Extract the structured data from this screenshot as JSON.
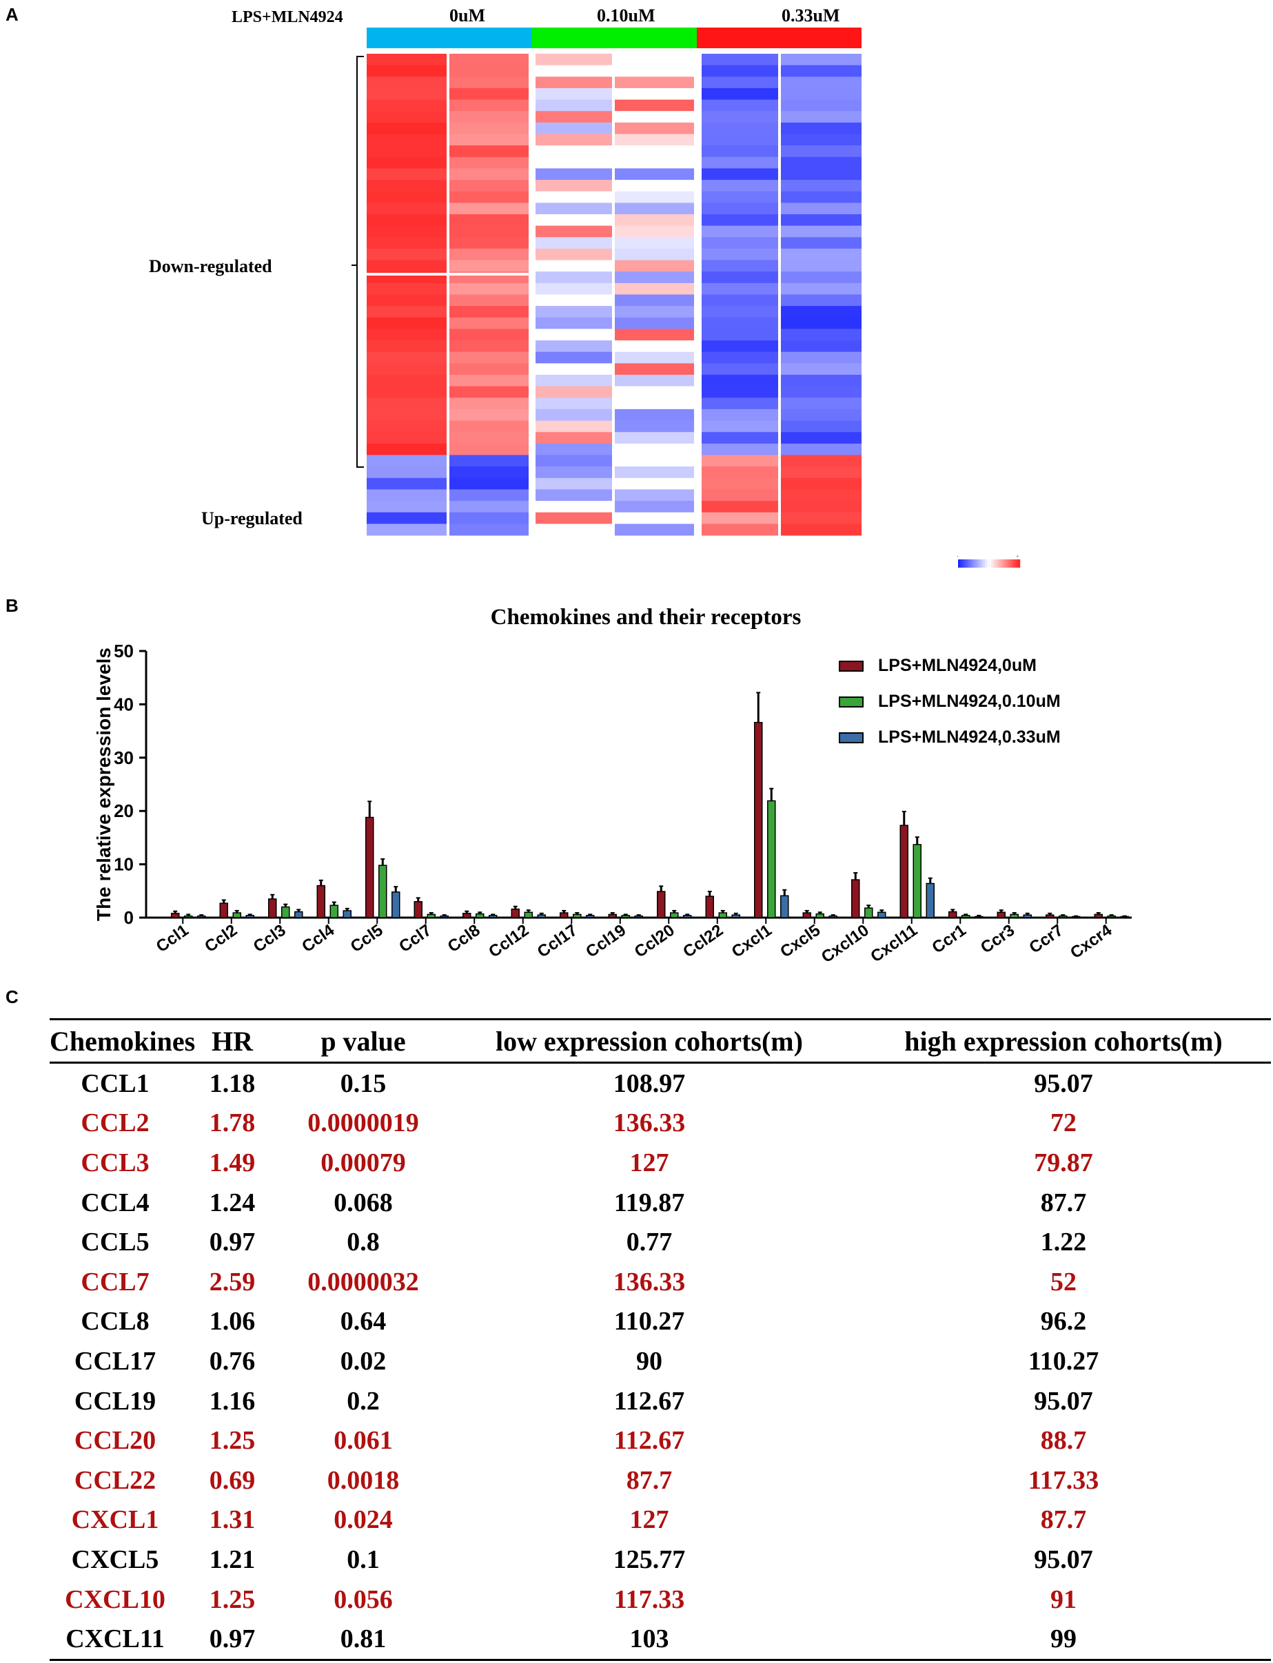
{
  "panel_labels": {
    "a": "A",
    "b": "B",
    "c": "C"
  },
  "colors": {
    "red": "#b01010",
    "black": "#000000",
    "group_0": "#00b4f0",
    "group_010": "#00ee00",
    "group_033": "#ff1515",
    "bar_0": "#8b1520",
    "bar_010": "#3aa63a",
    "bar_033": "#3a6ea6"
  },
  "heatmap": {
    "treatment_label": "LPS+MLN4924",
    "groups": [
      {
        "label": "0uM",
        "color": "#00b4f0"
      },
      {
        "label": "0.10uM",
        "color": "#00ee00"
      },
      {
        "label": "0.33uM",
        "color": "#ff1515"
      }
    ],
    "row_labels": {
      "down": "Down-regulated",
      "up": "Up-regulated"
    },
    "legend_min": "-",
    "legend_max": "+"
  },
  "chart_data": {
    "type": "bar",
    "title": "Chemokines and their receptors",
    "xlabel": "",
    "ylabel": "The relative expression levels",
    "ylim": [
      0,
      50
    ],
    "yticks": [
      0,
      10,
      20,
      30,
      40,
      50
    ],
    "legend_position": "top-right",
    "categories": [
      "Ccl1",
      "Ccl2",
      "Ccl3",
      "Ccl4",
      "Ccl5",
      "Ccl7",
      "Ccl8",
      "Ccl12",
      "Ccl17",
      "Ccl19",
      "Ccl20",
      "Ccl22",
      "Cxcl1",
      "Cxcl5",
      "Cxcl10",
      "Cxcl11",
      "Ccr1",
      "Ccr3",
      "Ccr7",
      "Cxcr4"
    ],
    "series": [
      {
        "name": "LPS+MLN4924,0uM",
        "color": "#8b1520",
        "values": [
          0.8,
          2.7,
          3.5,
          6.0,
          18.8,
          3.0,
          0.8,
          1.6,
          0.9,
          0.6,
          4.9,
          4.0,
          36.6,
          0.9,
          7.1,
          17.3,
          1.1,
          1.0,
          0.5,
          0.6
        ],
        "errors": [
          0.4,
          0.6,
          0.8,
          1.0,
          3.0,
          0.7,
          0.4,
          0.5,
          0.4,
          0.3,
          1.0,
          0.9,
          5.6,
          0.4,
          1.3,
          2.6,
          0.4,
          0.4,
          0.3,
          0.3
        ]
      },
      {
        "name": "LPS+MLN4924,0.10uM",
        "color": "#3aa63a",
        "values": [
          0.3,
          0.9,
          2.0,
          2.3,
          9.8,
          0.6,
          0.7,
          1.0,
          0.6,
          0.4,
          0.9,
          0.9,
          21.9,
          0.7,
          1.8,
          13.7,
          0.4,
          0.6,
          0.3,
          0.3
        ],
        "errors": [
          0.3,
          0.4,
          0.5,
          0.6,
          1.2,
          0.3,
          0.3,
          0.4,
          0.3,
          0.2,
          0.4,
          0.4,
          2.3,
          0.3,
          0.5,
          1.4,
          0.2,
          0.3,
          0.2,
          0.2
        ]
      },
      {
        "name": "LPS+MLN4924,0.33uM",
        "color": "#3a6ea6",
        "values": [
          0.3,
          0.4,
          1.1,
          1.3,
          4.8,
          0.3,
          0.4,
          0.5,
          0.4,
          0.3,
          0.4,
          0.5,
          4.1,
          0.3,
          1.0,
          6.4,
          0.2,
          0.5,
          0.2,
          0.2
        ],
        "errors": [
          0.2,
          0.2,
          0.4,
          0.4,
          1.0,
          0.2,
          0.2,
          0.3,
          0.2,
          0.2,
          0.2,
          0.3,
          1.1,
          0.2,
          0.4,
          1.0,
          0.2,
          0.3,
          0.1,
          0.1
        ]
      }
    ]
  },
  "table": {
    "headers": [
      "Chemokines",
      "HR",
      "p value",
      "low expression cohorts(m)",
      "high expression cohorts(m)"
    ],
    "rows": [
      {
        "name": "CCL1",
        "hr": "1.18",
        "p": "0.15",
        "low": "108.97",
        "high": "95.07",
        "red": false
      },
      {
        "name": "CCL2",
        "hr": "1.78",
        "p": "0.0000019",
        "low": "136.33",
        "high": "72",
        "red": true
      },
      {
        "name": "CCL3",
        "hr": "1.49",
        "p": "0.00079",
        "low": "127",
        "high": "79.87",
        "red": true
      },
      {
        "name": "CCL4",
        "hr": "1.24",
        "p": "0.068",
        "low": "119.87",
        "high": "87.7",
        "red": false
      },
      {
        "name": "CCL5",
        "hr": "0.97",
        "p": "0.8",
        "low": "0.77",
        "high": "1.22",
        "red": false
      },
      {
        "name": "CCL7",
        "hr": "2.59",
        "p": "0.0000032",
        "low": "136.33",
        "high": "52",
        "red": true
      },
      {
        "name": "CCL8",
        "hr": "1.06",
        "p": "0.64",
        "low": "110.27",
        "high": "96.2",
        "red": false
      },
      {
        "name": "CCL17",
        "hr": "0.76",
        "p": "0.02",
        "low": "90",
        "high": "110.27",
        "red": false
      },
      {
        "name": "CCL19",
        "hr": "1.16",
        "p": "0.2",
        "low": "112.67",
        "high": "95.07",
        "red": false
      },
      {
        "name": "CCL20",
        "hr": "1.25",
        "p": "0.061",
        "low": "112.67",
        "high": "88.7",
        "red": true
      },
      {
        "name": "CCL22",
        "hr": "0.69",
        "p": "0.0018",
        "low": "87.7",
        "high": "117.33",
        "red": true
      },
      {
        "name": "CXCL1",
        "hr": "1.31",
        "p": "0.024",
        "low": "127",
        "high": "87.7",
        "red": true
      },
      {
        "name": "CXCL5",
        "hr": "1.21",
        "p": "0.1",
        "low": "125.77",
        "high": "95.07",
        "red": false
      },
      {
        "name": "CXCL10",
        "hr": "1.25",
        "p": "0.056",
        "low": "117.33",
        "high": "91",
        "red": true
      },
      {
        "name": "CXCL11",
        "hr": "0.97",
        "p": "0.81",
        "low": "103",
        "high": "99",
        "red": false
      }
    ]
  }
}
